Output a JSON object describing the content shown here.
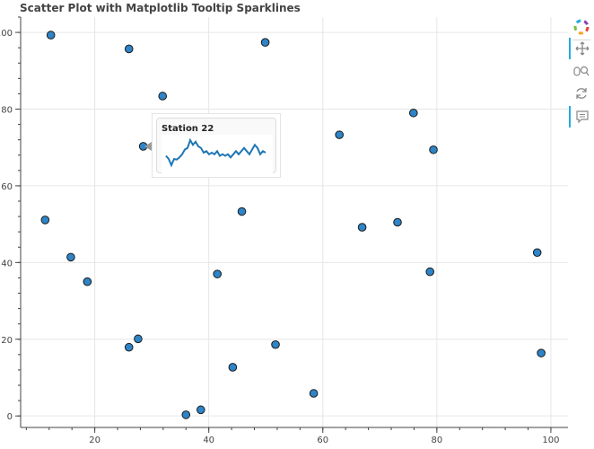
{
  "title": "Scatter Plot with Matplotlib Tooltip Sparklines",
  "colors": {
    "point_fill": "#2e84c6",
    "point_stroke": "#1a1a1a",
    "sparkline": "#1f77b4",
    "toolbar_active": "#26aae1"
  },
  "toolbar": {
    "tools": [
      {
        "name": "bokeh-logo-icon",
        "active": false
      },
      {
        "name": "pan-icon",
        "active": true
      },
      {
        "name": "box-zoom-icon",
        "active": false
      },
      {
        "name": "reset-icon",
        "active": false
      },
      {
        "name": "hover-icon",
        "active": true
      }
    ]
  },
  "tooltip": {
    "title": "Station 22",
    "sparkline": [
      68.5,
      67.5,
      65.5,
      67.5,
      67.3,
      68.0,
      69.0,
      70.5,
      71.0,
      73.5,
      72.0,
      73.0,
      71.5,
      71.0,
      69.5,
      70.0,
      69.0,
      69.5,
      69.0,
      70.0,
      68.5,
      69.0,
      68.5,
      69.0,
      68.0,
      69.0,
      70.0,
      69.0,
      70.0,
      71.0,
      70.0,
      69.0,
      70.5,
      72.0,
      71.0,
      69.0,
      70.0,
      69.5
    ]
  },
  "chart_data": {
    "type": "scatter",
    "title": "Scatter Plot with Matplotlib Tooltip Sparklines",
    "xlabel": "",
    "ylabel": "",
    "xlim": [
      7,
      103
    ],
    "ylim": [
      -3,
      104
    ],
    "xticks": [
      20,
      40,
      60,
      80,
      100
    ],
    "yticks": [
      0,
      20,
      40,
      60,
      80,
      100
    ],
    "grid": true,
    "points": [
      {
        "x": 12.3,
        "y": 99.3
      },
      {
        "x": 26.0,
        "y": 95.7
      },
      {
        "x": 49.9,
        "y": 97.4
      },
      {
        "x": 31.9,
        "y": 83.4
      },
      {
        "x": 75.9,
        "y": 79.0
      },
      {
        "x": 28.5,
        "y": 70.3
      },
      {
        "x": 62.9,
        "y": 73.3
      },
      {
        "x": 79.4,
        "y": 69.4
      },
      {
        "x": 11.3,
        "y": 51.1
      },
      {
        "x": 45.8,
        "y": 53.3
      },
      {
        "x": 66.9,
        "y": 49.2
      },
      {
        "x": 73.1,
        "y": 50.5
      },
      {
        "x": 15.8,
        "y": 41.4
      },
      {
        "x": 97.6,
        "y": 42.6
      },
      {
        "x": 78.8,
        "y": 37.6
      },
      {
        "x": 41.5,
        "y": 37.0
      },
      {
        "x": 18.7,
        "y": 35.0
      },
      {
        "x": 27.6,
        "y": 20.1
      },
      {
        "x": 26.0,
        "y": 17.9
      },
      {
        "x": 51.7,
        "y": 18.6
      },
      {
        "x": 98.3,
        "y": 16.4
      },
      {
        "x": 44.2,
        "y": 12.7
      },
      {
        "x": 58.4,
        "y": 5.9
      },
      {
        "x": 38.6,
        "y": 1.6
      },
      {
        "x": 36.0,
        "y": 0.3
      }
    ]
  }
}
